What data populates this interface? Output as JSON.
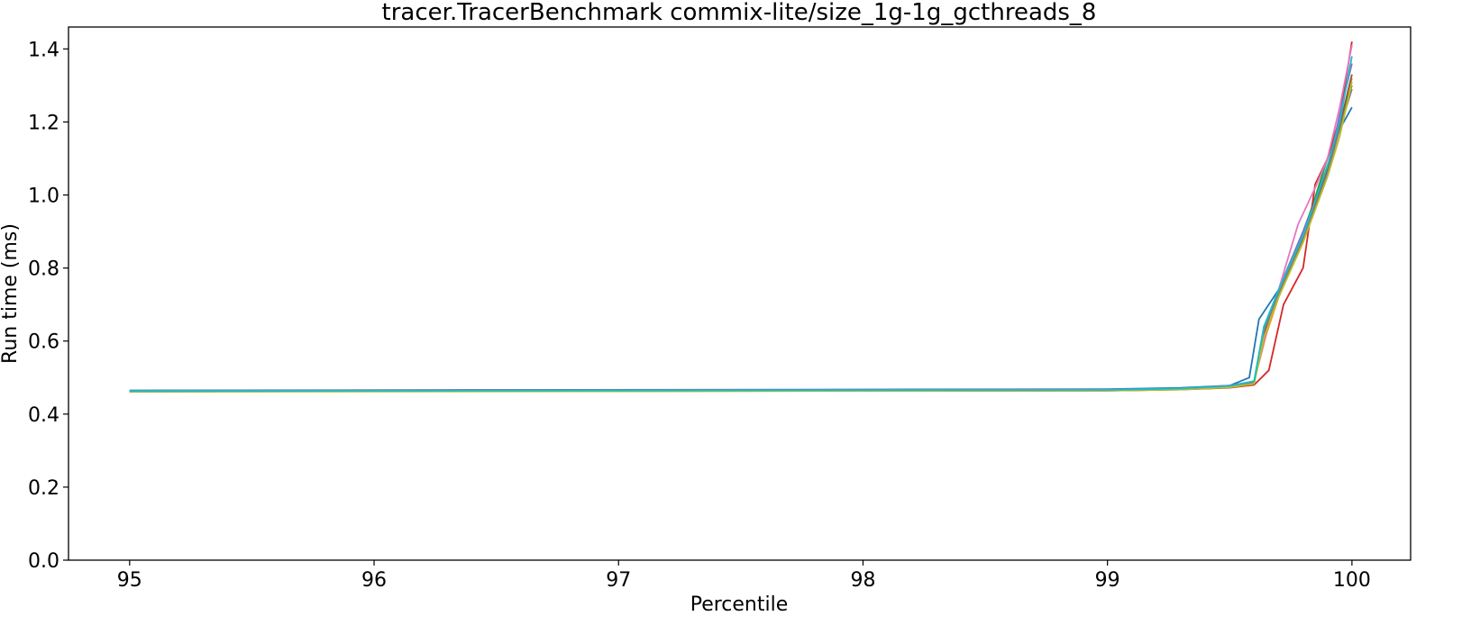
{
  "chart_data": {
    "type": "line",
    "title": "tracer.TracerBenchmark commix-lite/size_1g-1g_gcthreads_8",
    "xlabel": "Percentile",
    "ylabel": "Run time (ms)",
    "xlim": [
      94.75,
      100.24
    ],
    "ylim": [
      0.0,
      1.46
    ],
    "xticks": [
      95,
      96,
      97,
      98,
      99,
      100
    ],
    "yticks": [
      0.0,
      0.2,
      0.4,
      0.6,
      0.8,
      1.0,
      1.2,
      1.4
    ],
    "grid": false,
    "legend": "none",
    "series": [
      {
        "color": "#1f77b4",
        "x": [
          95,
          99.0,
          99.3,
          99.5,
          99.58,
          99.62,
          99.7,
          99.8,
          99.9,
          99.95,
          100.0
        ],
        "y": [
          0.465,
          0.468,
          0.472,
          0.478,
          0.5,
          0.66,
          0.74,
          0.9,
          1.08,
          1.18,
          1.24
        ]
      },
      {
        "color": "#ff7f0e",
        "x": [
          95,
          99.0,
          99.3,
          99.5,
          99.6,
          99.65,
          99.7,
          99.8,
          99.9,
          99.95,
          100.0
        ],
        "y": [
          0.462,
          0.465,
          0.468,
          0.475,
          0.49,
          0.62,
          0.72,
          0.88,
          1.08,
          1.18,
          1.32
        ]
      },
      {
        "color": "#2ca02c",
        "x": [
          95,
          99.0,
          99.3,
          99.5,
          99.6,
          99.64,
          99.7,
          99.8,
          99.9,
          99.95,
          100.0
        ],
        "y": [
          0.463,
          0.466,
          0.469,
          0.476,
          0.49,
          0.64,
          0.73,
          0.89,
          1.1,
          1.2,
          1.3
        ]
      },
      {
        "color": "#d62728",
        "x": [
          95,
          99.0,
          99.3,
          99.5,
          99.6,
          99.66,
          99.72,
          99.8,
          99.85,
          99.9,
          99.95,
          100.0
        ],
        "y": [
          0.462,
          0.464,
          0.467,
          0.472,
          0.48,
          0.52,
          0.7,
          0.8,
          1.03,
          1.1,
          1.21,
          1.42
        ]
      },
      {
        "color": "#9467bd",
        "x": [
          95,
          99.0,
          99.3,
          99.5,
          99.6,
          99.64,
          99.7,
          99.8,
          99.9,
          99.95,
          100.0
        ],
        "y": [
          0.464,
          0.467,
          0.47,
          0.478,
          0.49,
          0.63,
          0.74,
          0.9,
          1.06,
          1.22,
          1.36
        ]
      },
      {
        "color": "#8c564b",
        "x": [
          95,
          99.0,
          99.3,
          99.5,
          99.6,
          99.64,
          99.7,
          99.8,
          99.9,
          99.95,
          100.0
        ],
        "y": [
          0.462,
          0.465,
          0.468,
          0.474,
          0.485,
          0.62,
          0.73,
          0.88,
          1.07,
          1.19,
          1.33
        ]
      },
      {
        "color": "#e377c2",
        "x": [
          95,
          99.0,
          99.3,
          99.5,
          99.6,
          99.64,
          99.7,
          99.78,
          99.85,
          99.9,
          99.95,
          100.0
        ],
        "y": [
          0.463,
          0.466,
          0.469,
          0.476,
          0.49,
          0.6,
          0.74,
          0.92,
          1.02,
          1.1,
          1.24,
          1.41
        ]
      },
      {
        "color": "#7f7f7f",
        "x": [
          95,
          99.0,
          99.3,
          99.5,
          99.6,
          99.64,
          99.7,
          99.8,
          99.9,
          99.95,
          100.0
        ],
        "y": [
          0.462,
          0.465,
          0.468,
          0.474,
          0.486,
          0.63,
          0.73,
          0.88,
          1.06,
          1.18,
          1.29
        ]
      },
      {
        "color": "#bcbd22",
        "x": [
          95,
          99.0,
          99.3,
          99.5,
          99.6,
          99.64,
          99.7,
          99.8,
          99.9,
          99.95,
          100.0
        ],
        "y": [
          0.461,
          0.464,
          0.467,
          0.473,
          0.483,
          0.61,
          0.72,
          0.87,
          1.05,
          1.16,
          1.31
        ]
      },
      {
        "color": "#17becf",
        "x": [
          95,
          99.0,
          99.3,
          99.5,
          99.6,
          99.64,
          99.7,
          99.8,
          99.9,
          99.95,
          100.0
        ],
        "y": [
          0.463,
          0.466,
          0.47,
          0.477,
          0.49,
          0.64,
          0.74,
          0.89,
          1.08,
          1.2,
          1.38
        ]
      }
    ]
  }
}
